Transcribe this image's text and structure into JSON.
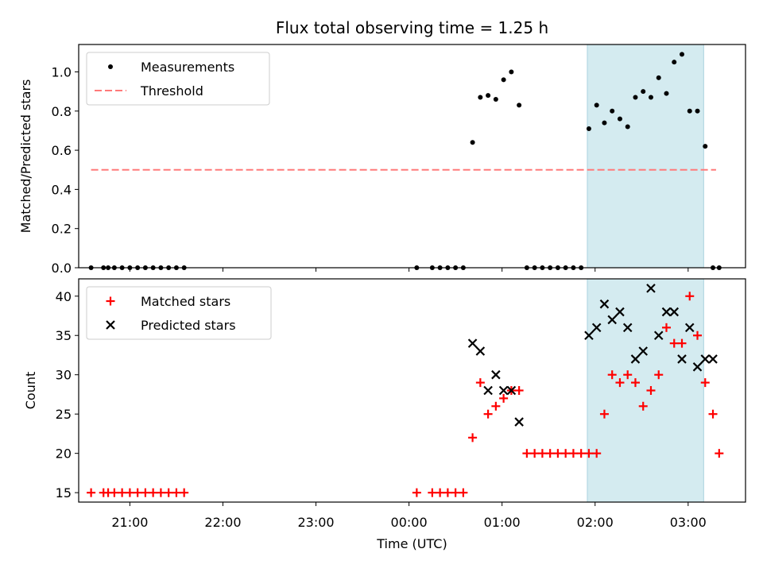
{
  "chart_data": {
    "title": "Flux total observing time = 1.25 h",
    "xlabel": "Time (UTC)",
    "x_ticks": [
      "21:00",
      "22:00",
      "23:00",
      "00:00",
      "01:00",
      "02:00",
      "03:00"
    ],
    "x_range": [
      "20:27",
      "03:37"
    ],
    "highlight_span": [
      "01:55",
      "03:10"
    ],
    "highlight_color": "#d4ebf0",
    "panels": [
      {
        "type": "scatter",
        "ylabel": "Matched/Predicted stars",
        "ylim": [
          0,
          1.14
        ],
        "y_ticks": [
          "0.0",
          "0.2",
          "0.4",
          "0.6",
          "0.8",
          "1.0"
        ],
        "legend_position": "upper-left",
        "series": [
          {
            "name": "Measurements",
            "marker": "dot",
            "color": "#000000",
            "x": [
              "20:35",
              "20:43",
              "20:46",
              "20:50",
              "20:55",
              "21:00",
              "21:05",
              "21:10",
              "21:15",
              "21:20",
              "21:25",
              "21:30",
              "21:35",
              "00:05",
              "00:15",
              "00:20",
              "00:25",
              "00:30",
              "00:35",
              "00:41",
              "00:46",
              "00:51",
              "00:56",
              "01:01",
              "01:06",
              "01:11",
              "01:16",
              "01:21",
              "01:26",
              "01:31",
              "01:36",
              "01:41",
              "01:46",
              "01:51",
              "01:56",
              "02:01",
              "02:06",
              "02:11",
              "02:16",
              "02:21",
              "02:26",
              "02:31",
              "02:36",
              "02:41",
              "02:46",
              "02:51",
              "02:56",
              "03:01",
              "03:06",
              "03:11",
              "03:16",
              "03:20"
            ],
            "y": [
              0,
              0,
              0,
              0,
              0,
              0,
              0,
              0,
              0,
              0,
              0,
              0,
              0,
              0,
              0,
              0,
              0,
              0,
              0,
              0.64,
              0.87,
              0.88,
              0.86,
              0.96,
              1.0,
              0.83,
              0,
              0,
              0,
              0,
              0,
              0,
              0,
              0,
              0.71,
              0.83,
              0.74,
              0.8,
              0.76,
              0.72,
              0.87,
              0.9,
              0.87,
              0.97,
              0.89,
              1.05,
              1.09,
              0.8,
              0.8,
              0.62,
              0,
              0
            ]
          },
          {
            "name": "Threshold",
            "marker": "dashed-line",
            "color": "#ff7a7a",
            "x": [
              "20:35",
              "03:18"
            ],
            "y": [
              0.5,
              0.5
            ]
          }
        ]
      },
      {
        "type": "scatter",
        "ylabel": "Count",
        "ylim": [
          13.8,
          42.2
        ],
        "y_ticks": [
          "15",
          "20",
          "25",
          "30",
          "35",
          "40"
        ],
        "legend_position": "upper-left",
        "series": [
          {
            "name": "Matched stars",
            "marker": "plus",
            "color": "#ff0000",
            "x": [
              "20:35",
              "20:43",
              "20:46",
              "20:50",
              "20:55",
              "21:00",
              "21:05",
              "21:10",
              "21:15",
              "21:20",
              "21:25",
              "21:30",
              "21:35",
              "00:05",
              "00:15",
              "00:20",
              "00:25",
              "00:30",
              "00:35",
              "00:41",
              "00:46",
              "00:51",
              "00:56",
              "01:01",
              "01:06",
              "01:11",
              "01:16",
              "01:21",
              "01:26",
              "01:31",
              "01:36",
              "01:41",
              "01:46",
              "01:51",
              "01:56",
              "02:01",
              "02:06",
              "02:11",
              "02:16",
              "02:21",
              "02:26",
              "02:31",
              "02:36",
              "02:41",
              "02:46",
              "02:51",
              "02:56",
              "03:01",
              "03:06",
              "03:11",
              "03:16",
              "03:20"
            ],
            "y": [
              15,
              15,
              15,
              15,
              15,
              15,
              15,
              15,
              15,
              15,
              15,
              15,
              15,
              15,
              15,
              15,
              15,
              15,
              15,
              22,
              29,
              25,
              26,
              27,
              28,
              28,
              20,
              20,
              20,
              20,
              20,
              20,
              20,
              20,
              20,
              20,
              25,
              30,
              29,
              30,
              29,
              26,
              28,
              30,
              36,
              34,
              34,
              40,
              35,
              29,
              25,
              20
            ]
          },
          {
            "name": "Predicted stars",
            "marker": "x",
            "color": "#000000",
            "x": [
              "00:41",
              "00:46",
              "00:51",
              "00:56",
              "01:01",
              "01:06",
              "01:11",
              "01:56",
              "02:01",
              "02:06",
              "02:11",
              "02:16",
              "02:21",
              "02:26",
              "02:31",
              "02:36",
              "02:41",
              "02:46",
              "02:51",
              "02:56",
              "03:01",
              "03:06",
              "03:11",
              "03:16"
            ],
            "y": [
              34,
              33,
              28,
              30,
              28,
              28,
              24,
              35,
              36,
              39,
              37,
              38,
              36,
              32,
              33,
              41,
              35,
              38,
              38,
              32,
              36,
              31,
              32,
              32
            ]
          }
        ]
      }
    ]
  }
}
